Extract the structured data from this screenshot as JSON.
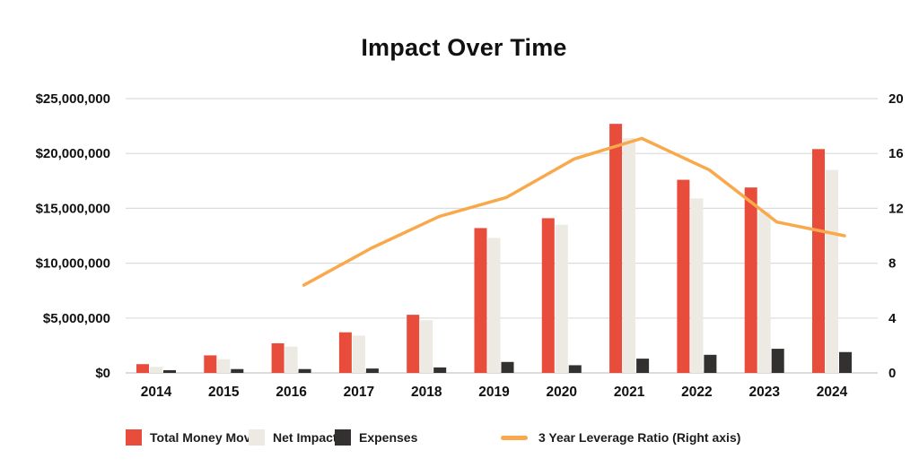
{
  "title": "Impact Over Time",
  "chart_data": {
    "type": "bar",
    "subtype": "grouped-bars-with-line-overlay",
    "title": "Impact Over Time",
    "categories": [
      "2014",
      "2015",
      "2016",
      "2017",
      "2018",
      "2019",
      "2020",
      "2021",
      "2022",
      "2023",
      "2024"
    ],
    "series": [
      {
        "name": "Total Money Moved",
        "type": "bar",
        "axis": "left",
        "color": "#E84D3C",
        "values": [
          800000,
          1600000,
          2700000,
          3700000,
          5300000,
          13200000,
          14100000,
          22700000,
          17600000,
          16900000,
          20400000
        ]
      },
      {
        "name": "Net Impact",
        "type": "bar",
        "axis": "left",
        "color": "#EDE9E3",
        "values": [
          550000,
          1250000,
          2400000,
          3400000,
          4800000,
          12300000,
          13500000,
          21400000,
          15900000,
          14700000,
          18500000
        ]
      },
      {
        "name": "Expenses",
        "type": "bar",
        "axis": "left",
        "color": "#33312F",
        "values": [
          250000,
          350000,
          350000,
          400000,
          500000,
          1000000,
          700000,
          1300000,
          1650000,
          2200000,
          1900000
        ]
      },
      {
        "name": "3 Year Leverage Ratio (Right axis)",
        "type": "line",
        "axis": "right",
        "color": "#F9A94C",
        "values": [
          null,
          null,
          6.4,
          9.1,
          11.4,
          12.8,
          15.6,
          17.1,
          14.8,
          11.0,
          10.0
        ]
      }
    ],
    "left_axis": {
      "min": 0,
      "max": 25000000,
      "tick_labels_top_to_bottom": [
        "$25,000,000",
        "$20,000,000",
        "$15,000,000",
        "$10,000,000",
        "$5,000,000",
        "$0"
      ]
    },
    "right_axis": {
      "min": 0,
      "max": 20,
      "tick_labels_top_to_bottom": [
        "20",
        "16",
        "12",
        "8",
        "4",
        "0"
      ]
    },
    "grid": true,
    "legend_position": "bottom",
    "colors": {
      "grid_line": "#DCDCDC",
      "baseline": "#DEDCDA",
      "text": "#111111"
    }
  }
}
